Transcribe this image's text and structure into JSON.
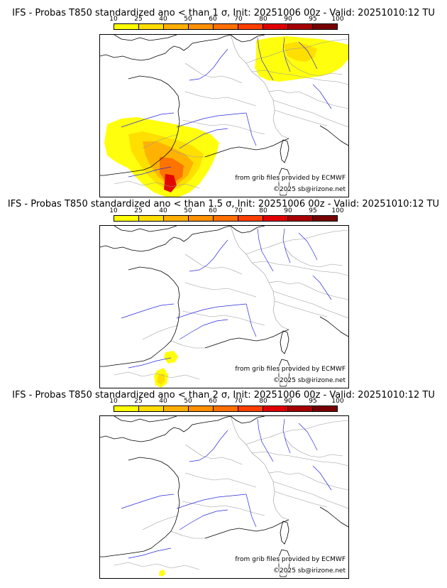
{
  "colorbar": {
    "ticks": [
      "10",
      "25",
      "40",
      "50",
      "60",
      "70",
      "80",
      "90",
      "95",
      "100"
    ],
    "colors": [
      "#ffff00",
      "#ffdd00",
      "#ffb000",
      "#ff9000",
      "#ff7000",
      "#ff4000",
      "#e00000",
      "#a80000",
      "#780000"
    ]
  },
  "colors": {
    "coast": "#000000",
    "borders": "#9a9a9a",
    "rivers": "#2a2ae0"
  },
  "panels": [
    {
      "title": "IFS - Probas T850  standardized ano < than 1 σ, Init: 20251006 00z - Valid: 20251010:12 TU",
      "source_text": "from grib files provided by ECMWF",
      "copyright": "©2025 sb@irizone.net",
      "anomaly_threshold": "1 σ"
    },
    {
      "title": "IFS - Probas T850  standardized ano < than 1.5 σ, Init: 20251006 00z - Valid: 20251010:12 TU",
      "source_text": "from grib files provided by ECMWF",
      "copyright": "©2025 sb@irizone.net",
      "anomaly_threshold": "1.5 σ"
    },
    {
      "title": "IFS - Probas T850  standardized ano < than 2 σ, Init: 20251006 00z - Valid: 20251010:12 TU",
      "source_text": "from grib files provided by ECMWF",
      "copyright": "©2025 sb@irizone.net",
      "anomaly_threshold": "2 σ"
    }
  ]
}
